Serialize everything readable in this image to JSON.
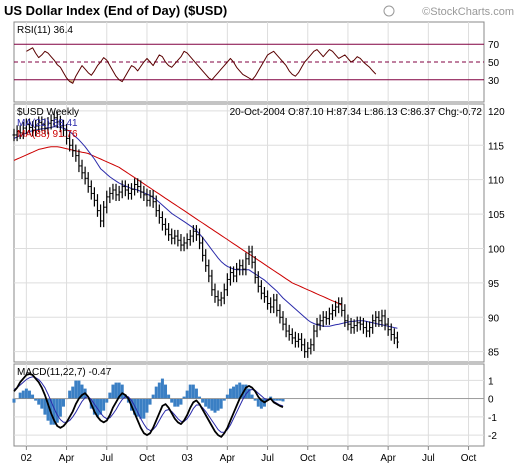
{
  "title": "US Dollar Index (End of Day) ($USD)",
  "watermark": "©StockCharts.com",
  "chart_data": [
    {
      "type": "line",
      "panel": "rsi",
      "label": "RSI(11) 36.4",
      "yticks": [
        30,
        50,
        70
      ],
      "ylim": [
        5,
        95
      ],
      "reference_lines": [
        30,
        50,
        70
      ],
      "series": [
        {
          "name": "RSI(11)",
          "x_start": 0,
          "values": [
            62,
            64,
            66,
            60,
            55,
            58,
            62,
            60,
            56,
            52,
            47,
            44,
            38,
            32,
            28,
            26,
            34,
            40,
            46,
            42,
            38,
            35,
            40,
            46,
            50,
            55,
            52,
            46,
            40,
            34,
            30,
            28,
            34,
            40,
            46,
            44,
            40,
            45,
            50,
            54,
            50,
            46,
            52,
            58,
            56,
            50,
            46,
            44,
            48,
            52,
            56,
            62,
            60,
            56,
            52,
            48,
            44,
            40,
            36,
            32,
            30,
            34,
            38,
            42,
            46,
            50,
            54,
            50,
            44,
            40,
            36,
            34,
            32,
            30,
            34,
            40,
            46,
            52,
            58,
            60,
            62,
            58,
            54,
            50,
            46,
            40,
            36,
            34,
            38,
            44,
            50,
            54,
            58,
            62,
            64,
            60,
            56,
            60,
            64,
            62,
            58,
            54,
            56,
            58,
            54,
            50,
            52,
            56,
            54,
            50,
            47,
            44,
            40,
            36.4
          ],
          "color": "#5a0000"
        }
      ]
    },
    {
      "type": "line",
      "panel": "price",
      "label": "$USD Weekly",
      "quote": "20-Oct-2004 O:87.10 H:87.34 L:86.13 C:86.37 Chg:-0.72",
      "yticks": [
        85,
        90,
        95,
        100,
        105,
        110,
        115,
        120
      ],
      "ylim": [
        83.5,
        121
      ],
      "x_tick_labels": [
        "02",
        "Apr",
        "Jul",
        "Oct",
        "03",
        "Apr",
        "Jul",
        "Oct",
        "04",
        "Apr",
        "Jul",
        "Oct"
      ],
      "x_tick_weeks": [
        0,
        13,
        26,
        39,
        52,
        65,
        78,
        91,
        104,
        117,
        130,
        143
      ],
      "series": [
        {
          "name": "$USD",
          "x_start": -4,
          "values": [
            116.5,
            117,
            116.8,
            117.5,
            118,
            117.6,
            117.2,
            117.8,
            118.3,
            118.0,
            117.5,
            118.2,
            118.6,
            119.0,
            118.4,
            117.8,
            117.2,
            116.0,
            115.0,
            114.2,
            113.5,
            112.0,
            111.0,
            110.2,
            109.0,
            108.0,
            107.0,
            105.5,
            104.0,
            106.0,
            107.5,
            108.0,
            108.5,
            107.8,
            108.2,
            109.0,
            108.5,
            108.0,
            108.6,
            109.3,
            109.0,
            108.2,
            107.8,
            107.0,
            107.6,
            106.8,
            105.5,
            104.5,
            103.5,
            102.8,
            102.0,
            101.5,
            101.8,
            101.2,
            100.5,
            100.8,
            101.3,
            101.8,
            102.5,
            102.0,
            100.8,
            99.0,
            97.5,
            96.0,
            94.0,
            93.0,
            92.5,
            92.8,
            94.0,
            95.5,
            96.5,
            96.0,
            97.0,
            97.5,
            97.0,
            98.5,
            99.5,
            98.0,
            95.8,
            94.5,
            93.5,
            93.0,
            92.0,
            91.5,
            92.5,
            91.0,
            90.0,
            89.0,
            88.0,
            87.5,
            87.0,
            86.5,
            86.8,
            86.0,
            85.0,
            85.5,
            86.0,
            88.0,
            89.0,
            89.5,
            90.0,
            89.8,
            90.5,
            91.0,
            91.5,
            92.0,
            91.0,
            89.5,
            89.0,
            88.5,
            88.8,
            89.2,
            89.0,
            88.5,
            88.0,
            88.5,
            89.5,
            90.0,
            89.5,
            90.2,
            89.0,
            88.2,
            87.5,
            87.0,
            86.4
          ],
          "color": "#000000"
        },
        {
          "name": "MA(22) 88.41",
          "x_start": -4,
          "values": [
            116.0,
            116.2,
            116.4,
            116.6,
            116.8,
            117.0,
            117.1,
            117.2,
            117.3,
            117.4,
            117.4,
            117.5,
            117.6,
            117.7,
            117.7,
            117.6,
            117.5,
            117.3,
            117.0,
            116.6,
            116.2,
            115.8,
            115.3,
            114.8,
            114.2,
            113.6,
            113.0,
            112.3,
            111.6,
            111.2,
            110.8,
            110.4,
            110.1,
            109.8,
            109.5,
            109.3,
            109.1,
            108.9,
            108.7,
            108.6,
            108.5,
            108.3,
            108.1,
            107.9,
            107.7,
            107.4,
            107.1,
            106.7,
            106.3,
            105.9,
            105.5,
            105.1,
            104.8,
            104.5,
            104.2,
            103.9,
            103.6,
            103.3,
            103.0,
            102.6,
            102.1,
            101.6,
            101.0,
            100.4,
            99.8,
            99.2,
            98.6,
            98.1,
            97.7,
            97.4,
            97.2,
            97.0,
            96.9,
            96.9,
            96.9,
            96.9,
            96.9,
            96.6,
            96.3,
            96.0,
            95.7,
            95.4,
            95.0,
            94.6,
            94.2,
            93.8,
            93.3,
            92.8,
            92.4,
            92.0,
            91.6,
            91.2,
            90.8,
            90.4,
            90.0,
            89.6,
            89.3,
            89.1,
            88.9,
            88.8,
            88.7,
            88.7,
            88.7,
            88.8,
            88.9,
            89.0,
            89.1,
            89.2,
            89.3,
            89.4,
            89.4,
            89.5,
            89.5,
            89.5,
            89.4,
            89.3,
            89.2,
            89.1,
            89.0,
            88.9,
            88.8,
            88.7,
            88.6,
            88.5,
            88.41
          ],
          "color": "#2a2aaa"
        },
        {
          "name": "MA(88) 91.76",
          "x_start": -4,
          "values": [
            112.8,
            113.0,
            113.2,
            113.4,
            113.6,
            113.8,
            114.0,
            114.2,
            114.4,
            114.5,
            114.6,
            114.7,
            114.8,
            114.8,
            114.8,
            114.7,
            114.6,
            114.5,
            114.4,
            114.3,
            114.2,
            114.1,
            114.0,
            113.9,
            113.8,
            113.6,
            113.4,
            113.2,
            113.0,
            112.8,
            112.6,
            112.4,
            112.2,
            112.0,
            111.8,
            111.5,
            111.2,
            110.9,
            110.6,
            110.3,
            110.0,
            109.7,
            109.4,
            109.1,
            108.8,
            108.5,
            108.2,
            107.9,
            107.6,
            107.3,
            107.0,
            106.7,
            106.4,
            106.1,
            105.8,
            105.5,
            105.2,
            104.9,
            104.6,
            104.3,
            104.0,
            103.7,
            103.4,
            103.1,
            102.8,
            102.5,
            102.2,
            101.9,
            101.6,
            101.3,
            101.0,
            100.7,
            100.4,
            100.1,
            99.8,
            99.5,
            99.2,
            98.9,
            98.6,
            98.3,
            98.0,
            97.7,
            97.4,
            97.1,
            96.8,
            96.5,
            96.2,
            95.9,
            95.6,
            95.3,
            95.0,
            94.8,
            94.6,
            94.4,
            94.2,
            94.0,
            93.8,
            93.6,
            93.4,
            93.2,
            93.0,
            92.8,
            92.6,
            92.4,
            92.2,
            92.0,
            91.76
          ],
          "color": "#cc0000"
        }
      ]
    },
    {
      "type": "line",
      "panel": "macd",
      "label": "MACD(11,22,7) -0.47",
      "yticks": [
        -2,
        -1,
        0,
        1
      ],
      "ylim": [
        -2.6,
        1.9
      ],
      "series": [
        {
          "name": "MACD",
          "x_start": -4,
          "values": [
            0.4,
            0.6,
            0.9,
            1.1,
            1.3,
            1.35,
            1.3,
            1.1,
            0.9,
            0.6,
            0.2,
            -0.3,
            -0.8,
            -1.2,
            -1.5,
            -1.6,
            -1.5,
            -1.3,
            -1.0,
            -0.7,
            -0.3,
            0.0,
            0.2,
            0.3,
            0.1,
            -0.3,
            -0.7,
            -1.0,
            -1.2,
            -1.3,
            -1.2,
            -0.9,
            -0.5,
            -0.2,
            0.1,
            0.3,
            0.2,
            0.0,
            -0.4,
            -0.8,
            -1.2,
            -1.6,
            -1.9,
            -2.0,
            -1.9,
            -1.6,
            -1.2,
            -0.8,
            -0.4,
            -0.3,
            -0.5,
            -0.8,
            -1.1,
            -1.3,
            -1.4,
            -1.2,
            -0.9,
            -0.5,
            -0.2,
            -0.1,
            -0.3,
            -0.6,
            -0.9,
            -1.2,
            -1.5,
            -1.8,
            -2.0,
            -2.1,
            -1.9,
            -1.6,
            -1.2,
            -0.8,
            -0.4,
            0.0,
            0.3,
            0.6,
            0.7,
            0.6,
            0.4,
            0.1,
            -0.1,
            -0.2,
            -0.1,
            0.0,
            -0.2,
            -0.3,
            -0.4,
            -0.47
          ],
          "color": "#000000"
        },
        {
          "name": "Signal",
          "x_start": -4,
          "values": [
            0.5,
            0.6,
            0.75,
            0.9,
            1.05,
            1.15,
            1.2,
            1.15,
            1.05,
            0.85,
            0.6,
            0.25,
            -0.15,
            -0.55,
            -0.9,
            -1.15,
            -1.3,
            -1.3,
            -1.2,
            -1.0,
            -0.75,
            -0.45,
            -0.15,
            0.05,
            0.1,
            -0.05,
            -0.3,
            -0.55,
            -0.8,
            -1.0,
            -1.1,
            -1.05,
            -0.85,
            -0.6,
            -0.3,
            -0.05,
            0.1,
            0.1,
            -0.1,
            -0.4,
            -0.75,
            -1.1,
            -1.4,
            -1.65,
            -1.75,
            -1.7,
            -1.5,
            -1.2,
            -0.9,
            -0.65,
            -0.6,
            -0.7,
            -0.9,
            -1.1,
            -1.25,
            -1.25,
            -1.1,
            -0.85,
            -0.55,
            -0.35,
            -0.35,
            -0.5,
            -0.7,
            -0.95,
            -1.2,
            -1.45,
            -1.7,
            -1.85,
            -1.85,
            -1.7,
            -1.45,
            -1.1,
            -0.75,
            -0.4,
            -0.05,
            0.25,
            0.45,
            0.5,
            0.45,
            0.3,
            0.15,
            0.0,
            -0.05,
            -0.05,
            -0.15,
            -0.25,
            -0.35,
            -0.4
          ],
          "color": "#2a2aaa"
        }
      ],
      "histogram_color": "#3a7fc4"
    }
  ]
}
